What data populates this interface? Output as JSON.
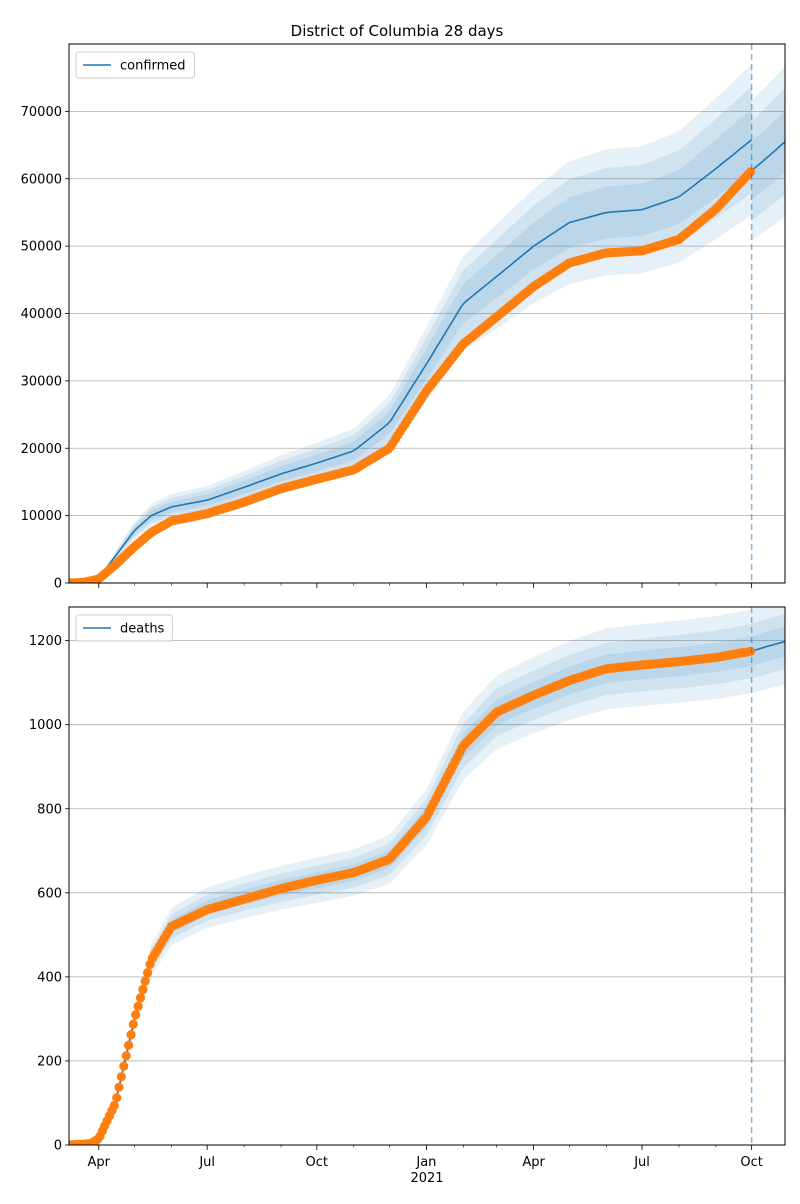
{
  "title": "District of Columbia 28 days",
  "x_axis": {
    "year_label": "2021",
    "ticks": [
      {
        "label": "Apr",
        "date": "2020-04-01"
      },
      {
        "label": "Jul",
        "date": "2020-07-01"
      },
      {
        "label": "Oct",
        "date": "2020-10-01"
      },
      {
        "label": "Jan",
        "date": "2021-01-01"
      },
      {
        "label": "Apr",
        "date": "2021-04-01"
      },
      {
        "label": "Jul",
        "date": "2021-07-01"
      },
      {
        "label": "Oct",
        "date": "2021-10-01"
      }
    ],
    "range": [
      "2020-03-07",
      "2021-10-29"
    ]
  },
  "colors": {
    "model_line": "#1f77b4",
    "band": "#1f77b4",
    "observed": "#ff7f0e",
    "grid": "#b0b0b0",
    "forecast_marker": "#1f77b4"
  },
  "chart_data": [
    {
      "type": "line",
      "name": "confirmed",
      "legend": "confirmed",
      "legend_position": "top-left",
      "grid": "horizontal",
      "ylim": [
        0,
        80000
      ],
      "yticks": [
        0,
        10000,
        20000,
        30000,
        40000,
        50000,
        60000,
        70000
      ],
      "forecast_start": "2021-10-01",
      "model_curve": [
        {
          "x": "2020-03-07",
          "y": 0
        },
        {
          "x": "2020-03-25",
          "y": 200
        },
        {
          "x": "2020-04-01",
          "y": 700
        },
        {
          "x": "2020-04-15",
          "y": 4000
        },
        {
          "x": "2020-05-01",
          "y": 7800
        },
        {
          "x": "2020-05-15",
          "y": 10000
        },
        {
          "x": "2020-06-01",
          "y": 11300
        },
        {
          "x": "2020-07-01",
          "y": 12300
        },
        {
          "x": "2020-08-01",
          "y": 14200
        },
        {
          "x": "2020-09-01",
          "y": 16200
        },
        {
          "x": "2020-10-01",
          "y": 17800
        },
        {
          "x": "2020-11-01",
          "y": 19600
        },
        {
          "x": "2020-12-01",
          "y": 23800
        },
        {
          "x": "2021-01-01",
          "y": 32500
        },
        {
          "x": "2021-02-01",
          "y": 41500
        },
        {
          "x": "2021-03-01",
          "y": 45500
        },
        {
          "x": "2021-04-01",
          "y": 50000
        },
        {
          "x": "2021-05-01",
          "y": 53500
        },
        {
          "x": "2021-06-01",
          "y": 55000
        },
        {
          "x": "2021-07-01",
          "y": 55400
        },
        {
          "x": "2021-08-01",
          "y": 57300
        },
        {
          "x": "2021-09-01",
          "y": 61500
        },
        {
          "x": "2021-10-01",
          "y": 65800
        }
      ],
      "forecast_curve": [
        {
          "x": "2021-10-01",
          "y": 61200
        },
        {
          "x": "2021-10-15",
          "y": 63300
        },
        {
          "x": "2021-10-29",
          "y": 65500
        }
      ],
      "band_widths": [
        0.07,
        0.12,
        0.17
      ],
      "observed": [
        {
          "x": "2020-03-07",
          "y": 0
        },
        {
          "x": "2020-03-20",
          "y": 100
        },
        {
          "x": "2020-04-01",
          "y": 600
        },
        {
          "x": "2020-04-15",
          "y": 2700
        },
        {
          "x": "2020-05-01",
          "y": 5400
        },
        {
          "x": "2020-05-15",
          "y": 7500
        },
        {
          "x": "2020-06-01",
          "y": 9200
        },
        {
          "x": "2020-07-01",
          "y": 10300
        },
        {
          "x": "2020-08-01",
          "y": 12000
        },
        {
          "x": "2020-09-01",
          "y": 14000
        },
        {
          "x": "2020-10-01",
          "y": 15400
        },
        {
          "x": "2020-11-01",
          "y": 16800
        },
        {
          "x": "2020-12-01",
          "y": 20000
        },
        {
          "x": "2021-01-01",
          "y": 28500
        },
        {
          "x": "2021-02-01",
          "y": 35500
        },
        {
          "x": "2021-03-01",
          "y": 39500
        },
        {
          "x": "2021-04-01",
          "y": 44000
        },
        {
          "x": "2021-05-01",
          "y": 47500
        },
        {
          "x": "2021-06-01",
          "y": 49000
        },
        {
          "x": "2021-07-01",
          "y": 49300
        },
        {
          "x": "2021-08-01",
          "y": 51000
        },
        {
          "x": "2021-09-01",
          "y": 55500
        },
        {
          "x": "2021-10-01",
          "y": 61200
        }
      ]
    },
    {
      "type": "line",
      "name": "deaths",
      "legend": "deaths",
      "legend_position": "top-left",
      "grid": "horizontal",
      "ylim": [
        0,
        1280
      ],
      "yticks": [
        0,
        200,
        400,
        600,
        800,
        1000,
        1200
      ],
      "forecast_start": "2021-10-01",
      "model_curve": [
        {
          "x": "2020-03-07",
          "y": 0
        },
        {
          "x": "2020-03-25",
          "y": 5
        },
        {
          "x": "2020-04-01",
          "y": 15
        },
        {
          "x": "2020-04-15",
          "y": 100
        },
        {
          "x": "2020-05-01",
          "y": 300
        },
        {
          "x": "2020-05-15",
          "y": 440
        },
        {
          "x": "2020-06-01",
          "y": 520
        },
        {
          "x": "2020-07-01",
          "y": 565
        },
        {
          "x": "2020-08-01",
          "y": 590
        },
        {
          "x": "2020-09-01",
          "y": 612
        },
        {
          "x": "2020-10-01",
          "y": 630
        },
        {
          "x": "2020-11-01",
          "y": 648
        },
        {
          "x": "2020-12-01",
          "y": 680
        },
        {
          "x": "2021-01-01",
          "y": 780
        },
        {
          "x": "2021-02-01",
          "y": 950
        },
        {
          "x": "2021-03-01",
          "y": 1030
        },
        {
          "x": "2021-04-01",
          "y": 1070
        },
        {
          "x": "2021-05-01",
          "y": 1105
        },
        {
          "x": "2021-06-01",
          "y": 1133
        },
        {
          "x": "2021-07-01",
          "y": 1142
        },
        {
          "x": "2021-08-01",
          "y": 1150
        },
        {
          "x": "2021-09-01",
          "y": 1160
        },
        {
          "x": "2021-10-01",
          "y": 1175
        }
      ],
      "forecast_curve": [
        {
          "x": "2021-10-01",
          "y": 1175
        },
        {
          "x": "2021-10-15",
          "y": 1187
        },
        {
          "x": "2021-10-29",
          "y": 1198
        }
      ],
      "band_widths": [
        0.03,
        0.055,
        0.085
      ],
      "observed": [
        {
          "x": "2020-03-07",
          "y": 0
        },
        {
          "x": "2020-03-25",
          "y": 3
        },
        {
          "x": "2020-04-01",
          "y": 15
        },
        {
          "x": "2020-04-15",
          "y": 100
        },
        {
          "x": "2020-05-01",
          "y": 300
        },
        {
          "x": "2020-05-15",
          "y": 440
        },
        {
          "x": "2020-06-01",
          "y": 520
        },
        {
          "x": "2020-07-01",
          "y": 560
        },
        {
          "x": "2020-08-01",
          "y": 585
        },
        {
          "x": "2020-09-01",
          "y": 610
        },
        {
          "x": "2020-10-01",
          "y": 630
        },
        {
          "x": "2020-11-01",
          "y": 648
        },
        {
          "x": "2020-12-01",
          "y": 680
        },
        {
          "x": "2021-01-01",
          "y": 780
        },
        {
          "x": "2021-02-01",
          "y": 950
        },
        {
          "x": "2021-03-01",
          "y": 1030
        },
        {
          "x": "2021-04-01",
          "y": 1070
        },
        {
          "x": "2021-05-01",
          "y": 1105
        },
        {
          "x": "2021-06-01",
          "y": 1133
        },
        {
          "x": "2021-07-01",
          "y": 1142
        },
        {
          "x": "2021-08-01",
          "y": 1150
        },
        {
          "x": "2021-09-01",
          "y": 1160
        },
        {
          "x": "2021-10-01",
          "y": 1175
        }
      ]
    }
  ]
}
